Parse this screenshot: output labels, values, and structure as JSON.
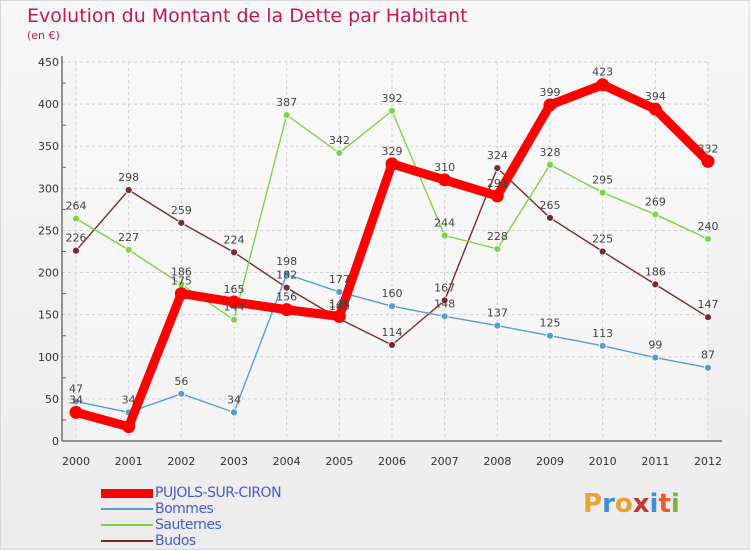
{
  "header": {
    "title": "Evolution du Montant de la Dette par Habitant",
    "subtitle": "(en €)"
  },
  "logo": {
    "text": "Proxiti",
    "letter_colors": [
      "#e8a23a",
      "#3a8fd8",
      "#e8a23a",
      "#c0392b",
      "#3a8fd8",
      "#e85d2a",
      "#7ab43a"
    ]
  },
  "chart_data": {
    "type": "line",
    "title": "Evolution du Montant de la Dette par Habitant",
    "subtitle": "(en €)",
    "xlabel": "",
    "ylabel": "",
    "x": [
      "2000",
      "2001",
      "2002",
      "2003",
      "2004",
      "2005",
      "2006",
      "2007",
      "2008",
      "2009",
      "2010",
      "2011",
      "2012"
    ],
    "ylim": [
      0,
      450
    ],
    "yticks": [
      0,
      50,
      100,
      150,
      200,
      250,
      300,
      350,
      400,
      450
    ],
    "grid": true,
    "legend_position": "bottom-left",
    "series": [
      {
        "name": "PUJOLS-SUR-CIRON",
        "color": "#ff0000",
        "values": [
          34,
          17,
          175,
          165,
          156,
          148,
          329,
          310,
          291,
          399,
          423,
          394,
          332
        ],
        "labels": [
          "34",
          "",
          "175",
          "165",
          "156",
          "148",
          "329",
          "310",
          "291",
          "399",
          "423",
          "394",
          "332"
        ]
      },
      {
        "name": "Bommes",
        "color": "#5b9bd5",
        "values": [
          47,
          34,
          56,
          34,
          198,
          177,
          160,
          148,
          137,
          125,
          113,
          99,
          87
        ],
        "labels": [
          "47",
          "34",
          "56",
          "34",
          "198",
          "177",
          "160",
          "148",
          "137",
          "125",
          "113",
          "99",
          "87"
        ]
      },
      {
        "name": "Sauternes",
        "color": "#7ed348",
        "values": [
          264,
          227,
          186,
          144,
          387,
          342,
          392,
          244,
          228,
          328,
          295,
          269,
          240
        ],
        "labels": [
          "264",
          "227",
          "186",
          "144",
          "387",
          "342",
          "392",
          "244",
          "228",
          "328",
          "295",
          "269",
          "240"
        ]
      },
      {
        "name": "Budos",
        "color": "#7b2a2a",
        "values": [
          226,
          298,
          259,
          224,
          182,
          145,
          114,
          167,
          324,
          265,
          225,
          186,
          147
        ],
        "labels": [
          "226",
          "298",
          "259",
          "224",
          "182",
          "145",
          "114",
          "167",
          "324",
          "265",
          "225",
          "186",
          "147"
        ]
      }
    ]
  }
}
